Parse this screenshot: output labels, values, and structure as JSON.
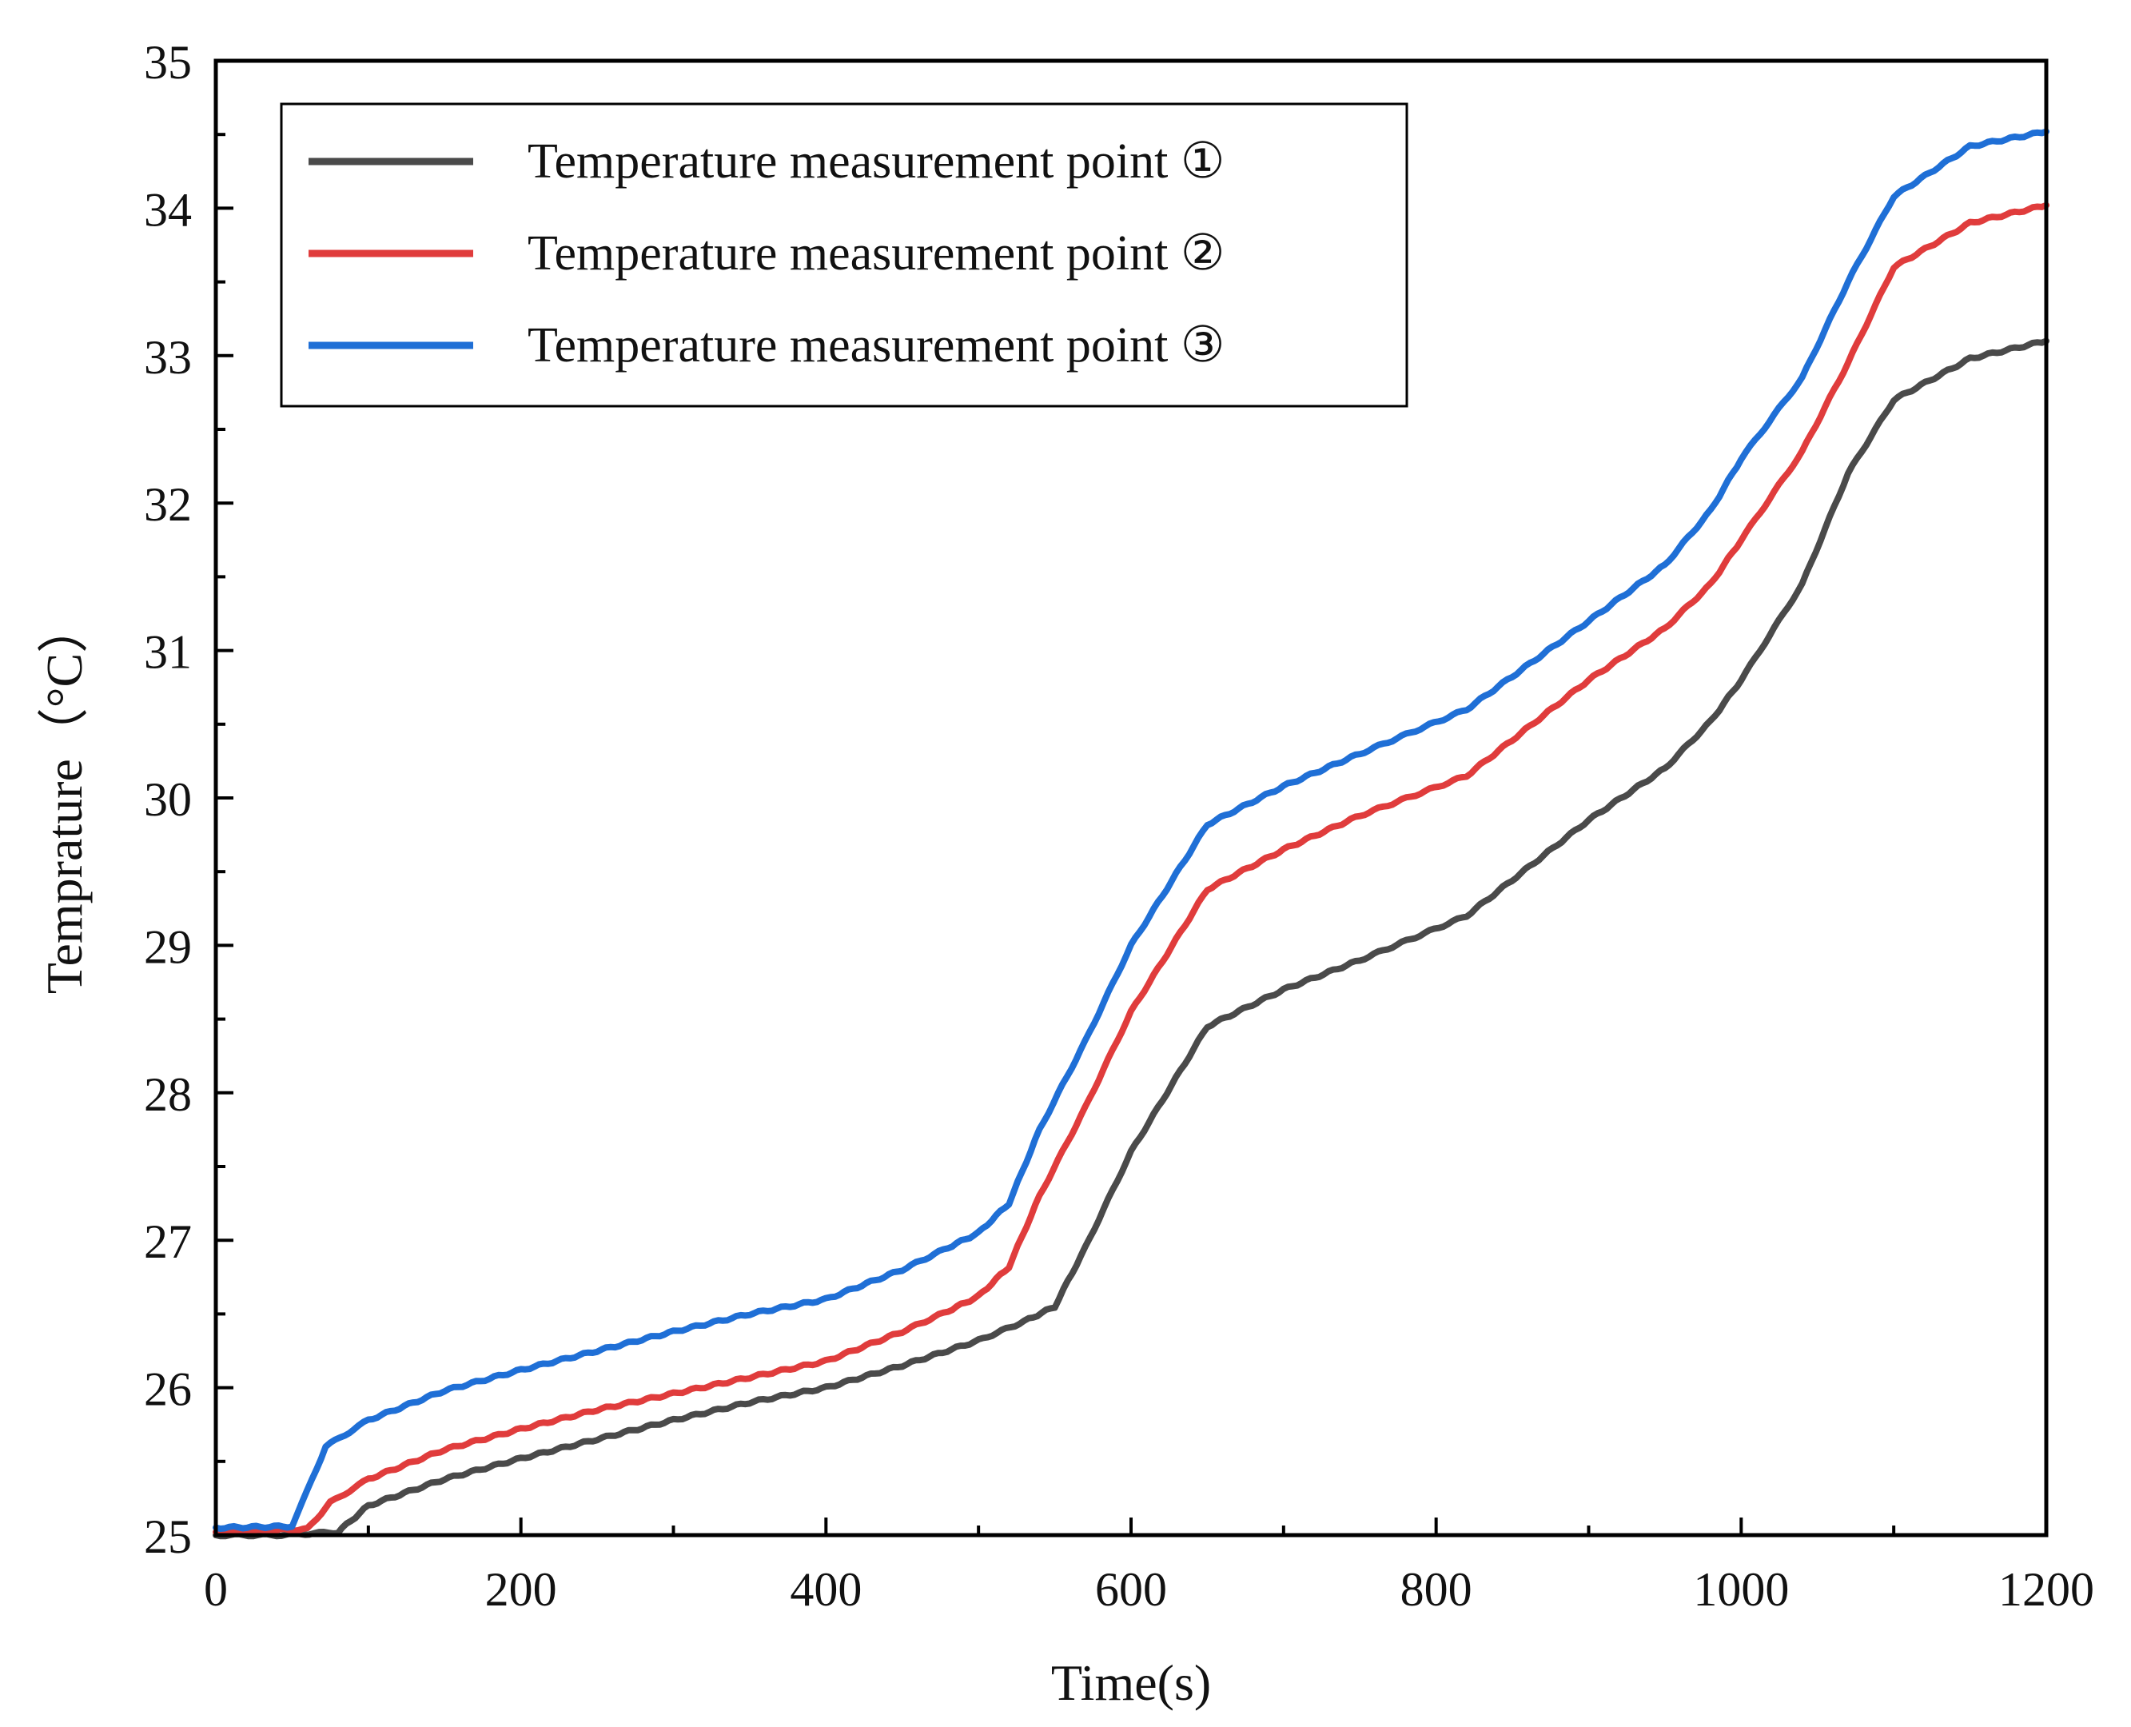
{
  "chart_data": {
    "type": "line",
    "title": "",
    "xlabel": "Time(s)",
    "ylabel": "Temprature（°C）",
    "xlim": [
      0,
      1200
    ],
    "ylim": [
      25,
      35
    ],
    "xticks": [
      0,
      200,
      400,
      600,
      800,
      1000,
      1200
    ],
    "xtick_labels": [
      "0",
      "200",
      "400",
      "600",
      "800",
      "1000",
      "1200"
    ],
    "yticks": [
      25,
      26,
      27,
      28,
      29,
      30,
      31,
      32,
      33,
      34,
      35
    ],
    "ytick_labels": [
      "25",
      "26",
      "27",
      "28",
      "29",
      "30",
      "31",
      "32",
      "33",
      "34",
      "35"
    ],
    "grid": false,
    "legend_position": "top-left",
    "series": [
      {
        "name": "Temperature measurement point ①",
        "color": "#4a4a4a",
        "x": [
          0,
          40,
          80,
          100,
          150,
          200,
          250,
          300,
          350,
          400,
          450,
          500,
          530,
          550,
          570,
          600,
          650,
          700,
          750,
          820,
          900,
          950,
          980,
          1000,
          1040,
          1070,
          1100,
          1150,
          1200
        ],
        "y": [
          25.0,
          25.0,
          25.02,
          25.2,
          25.38,
          25.52,
          25.65,
          25.78,
          25.9,
          26.0,
          26.15,
          26.32,
          26.45,
          26.55,
          26.95,
          27.6,
          28.45,
          28.7,
          28.9,
          29.2,
          29.85,
          30.2,
          30.52,
          30.8,
          31.45,
          32.2,
          32.7,
          32.98,
          33.1
        ]
      },
      {
        "name": "Temperature measurement point ②",
        "color": "#e03c3c",
        "x": [
          0,
          60,
          75,
          100,
          150,
          200,
          250,
          300,
          350,
          400,
          450,
          480,
          500,
          520,
          540,
          570,
          600,
          650,
          700,
          750,
          820,
          900,
          950,
          980,
          1000,
          1040,
          1070,
          1100,
          1150,
          1200
        ],
        "y": [
          25.02,
          25.04,
          25.22,
          25.38,
          25.58,
          25.72,
          25.85,
          25.96,
          26.07,
          26.18,
          26.38,
          26.52,
          26.62,
          26.82,
          27.3,
          27.9,
          28.55,
          29.38,
          29.65,
          29.88,
          30.15,
          30.8,
          31.15,
          31.45,
          31.75,
          32.35,
          32.95,
          33.6,
          33.9,
          34.02
        ]
      },
      {
        "name": "Temperature measurement point ③",
        "color": "#1f6fd6",
        "x": [
          0,
          50,
          60,
          72,
          100,
          150,
          200,
          250,
          300,
          350,
          400,
          450,
          480,
          500,
          520,
          540,
          570,
          600,
          650,
          700,
          750,
          820,
          900,
          950,
          980,
          1000,
          1040,
          1070,
          1100,
          1150,
          1200
        ],
        "y": [
          25.05,
          25.06,
          25.3,
          25.6,
          25.78,
          25.98,
          26.12,
          26.25,
          26.38,
          26.5,
          26.6,
          26.8,
          26.95,
          27.05,
          27.25,
          27.75,
          28.35,
          29.0,
          29.82,
          30.08,
          30.3,
          30.6,
          31.2,
          31.58,
          31.95,
          32.3,
          32.85,
          33.5,
          34.08,
          34.42,
          34.52
        ]
      }
    ]
  }
}
